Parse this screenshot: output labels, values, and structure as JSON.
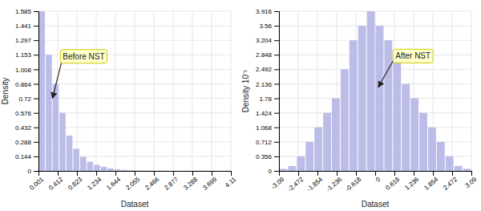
{
  "chart_data": [
    {
      "type": "histogram",
      "xlabel": "Dataset",
      "ylabel": "Density",
      "bins": [
        0.001,
        0.14775,
        0.2945,
        0.44125,
        0.588,
        0.73475,
        0.8815,
        1.02825,
        1.175,
        1.32175,
        1.4685,
        1.61525,
        1.762,
        1.90875,
        2.0555,
        2.20225,
        2.349,
        2.49575,
        2.6425,
        2.78925,
        2.936,
        3.08275,
        3.2295,
        3.37625,
        3.523,
        3.66975,
        3.8165,
        3.96325,
        4.11
      ],
      "values": [
        1.585,
        1.153,
        0.864,
        0.576,
        0.35,
        0.22,
        0.14,
        0.09,
        0.06,
        0.04,
        0.025,
        0.015,
        0.01,
        0.005,
        0.003,
        0.002,
        0.001,
        0.001,
        0.0,
        0.0,
        0.0,
        0.0,
        0.0,
        0.0,
        0.001,
        0.0,
        0.0,
        0.001
      ],
      "color": "#bbbde8",
      "xlim": [
        0.001,
        4.11
      ],
      "ylim": [
        0,
        1.585
      ],
      "xticks": [
        0.001,
        0.412,
        0.823,
        1.234,
        1.644,
        2.055,
        2.466,
        2.877,
        3.288,
        3.699,
        4.11
      ],
      "yticks": [
        0,
        0.144,
        0.288,
        0.432,
        0.576,
        0.72,
        0.864,
        1.008,
        1.153,
        1.297,
        1.441,
        1.585
      ],
      "grid": true,
      "annotations": [
        {
          "text": "Before NST",
          "x": 0.52,
          "y": 1.13,
          "arrow_x": 0.3,
          "arrow_y": 0.72
        }
      ]
    },
    {
      "type": "histogram",
      "xlabel": "Dataset",
      "ylabel": "Density  10⁻¹",
      "bins": [
        -3.09,
        -2.80909,
        -2.52818,
        -2.24727,
        -1.96636,
        -1.68545,
        -1.40455,
        -1.12364,
        -0.84273,
        -0.56182,
        -0.28091,
        0,
        0.28091,
        0.56182,
        0.84273,
        1.12364,
        1.40455,
        1.68545,
        1.96636,
        2.24727,
        2.52818,
        2.80909,
        3.09
      ],
      "values": [
        0.05,
        0.12,
        0.356,
        0.712,
        1.068,
        1.424,
        1.78,
        2.492,
        3.204,
        3.56,
        3.916,
        3.56,
        3.204,
        2.848,
        2.136,
        1.78,
        1.424,
        1.068,
        0.712,
        0.356,
        0.12,
        0.05
      ],
      "color": "#bbbde8",
      "xlim": [
        -3.09,
        3.09
      ],
      "ylim": [
        0,
        3.916
      ],
      "xticks": [
        -3.09,
        -2.472,
        -1.854,
        -1.236,
        -0.618,
        0,
        0.618,
        1.236,
        1.854,
        2.472,
        3.09
      ],
      "yticks": [
        0,
        0.356,
        0.712,
        1.068,
        1.424,
        1.78,
        2.136,
        2.492,
        2.848,
        3.204,
        3.56,
        3.916
      ],
      "grid": true,
      "annotations": [
        {
          "text": "After NST",
          "x": 0.65,
          "y": 2.8,
          "arrow_x": 0.1,
          "arrow_y": 2.05
        }
      ]
    }
  ]
}
